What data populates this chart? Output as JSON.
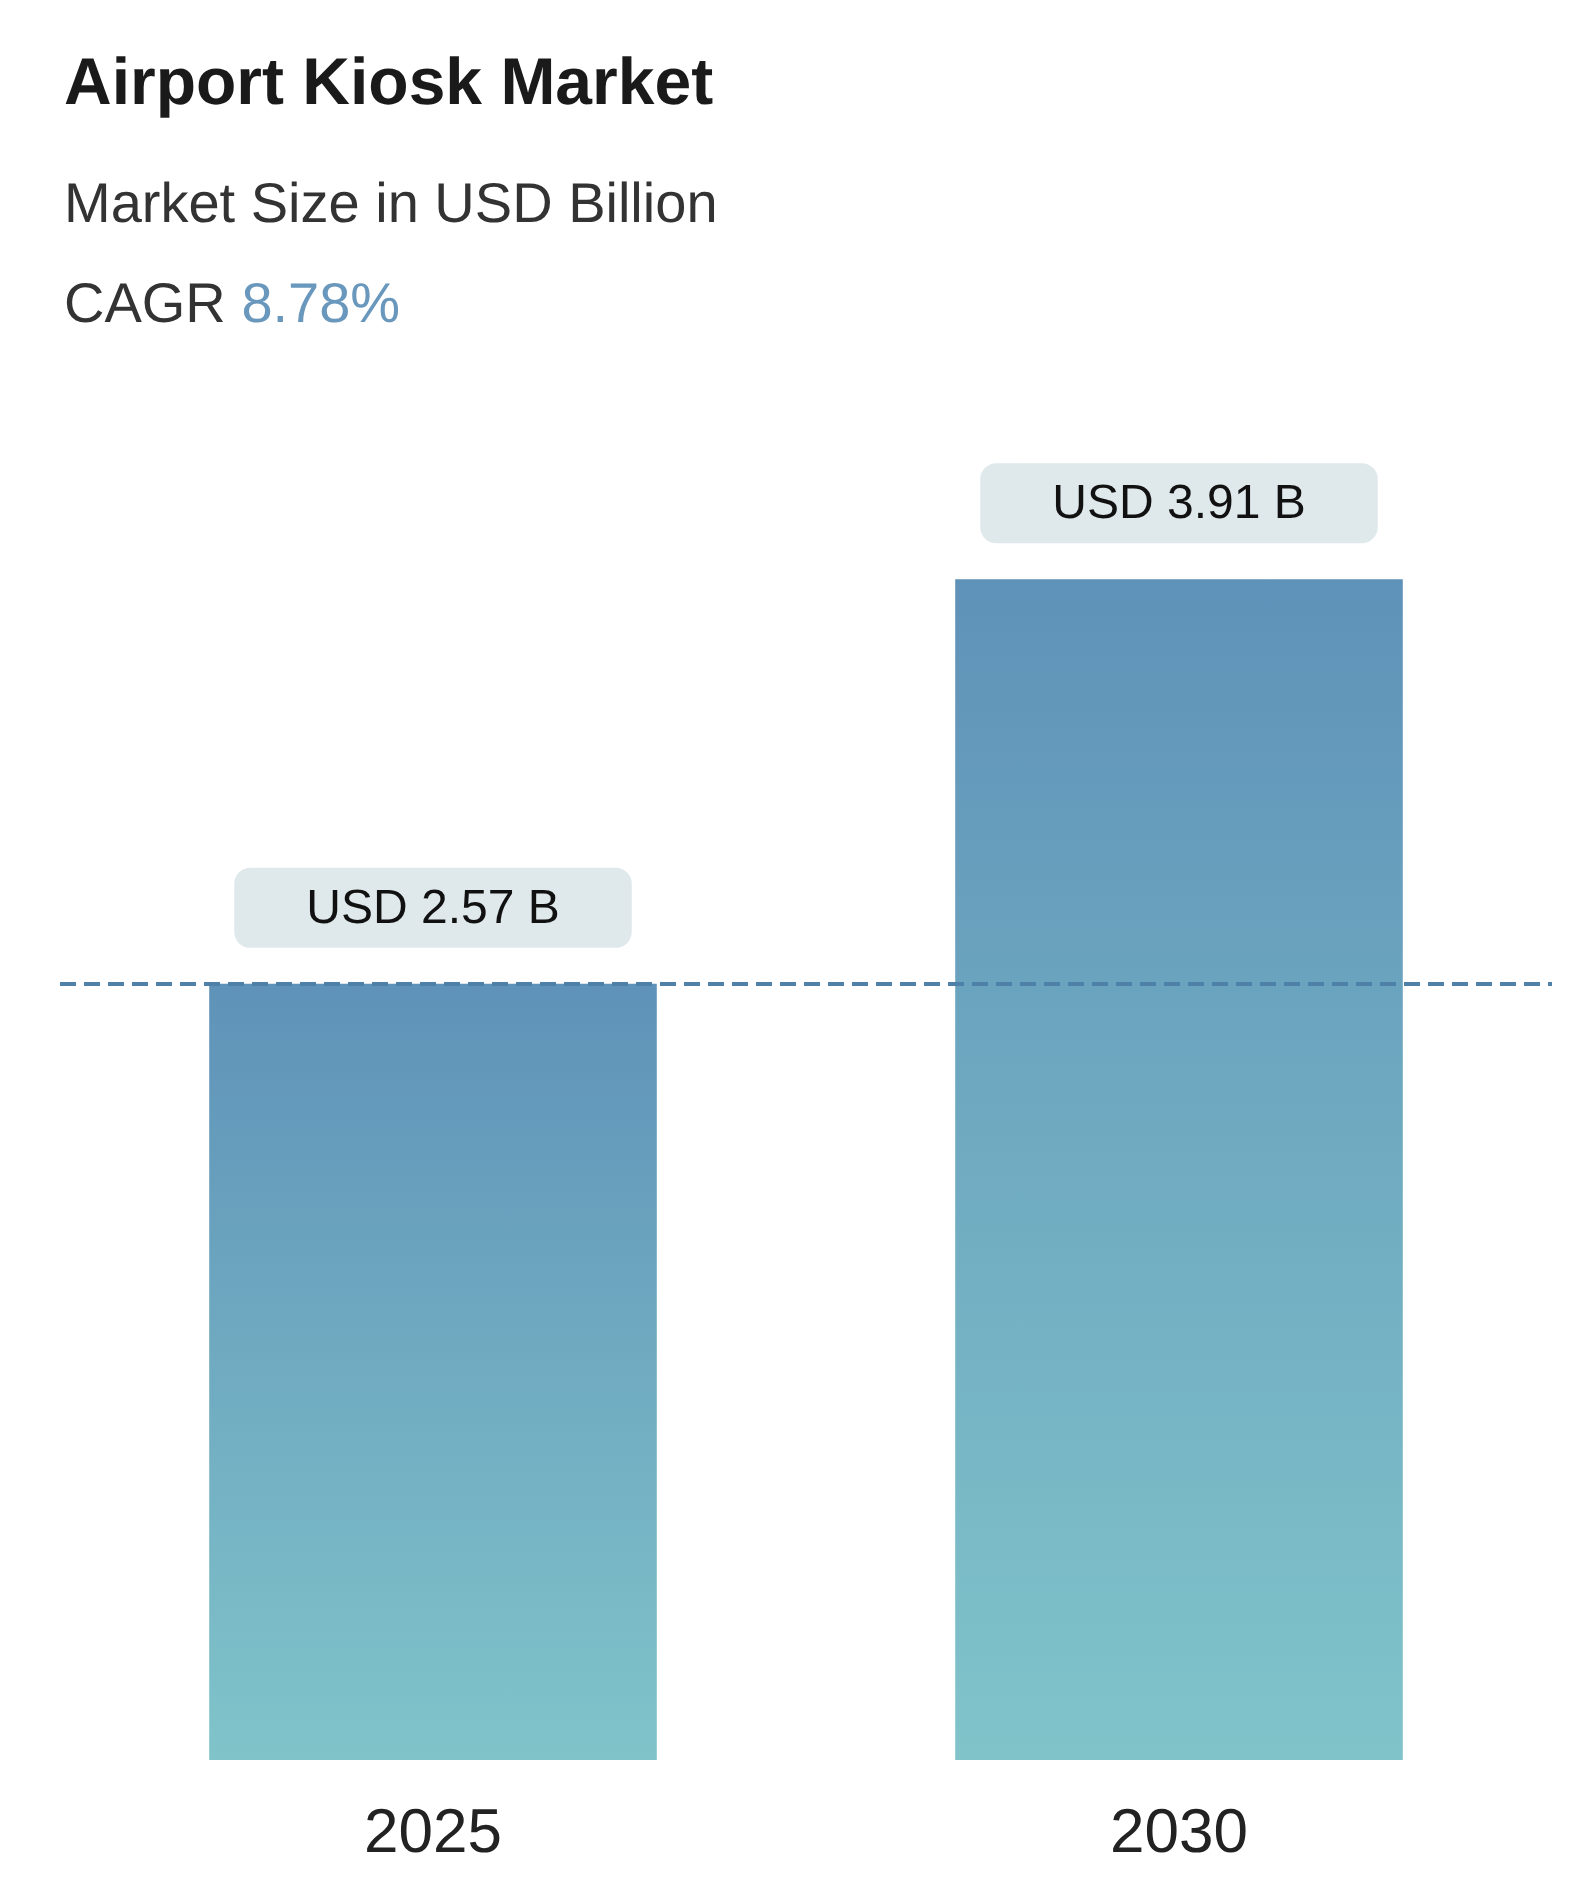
{
  "chart_data": {
    "type": "bar",
    "title": "Airport Kiosk Market",
    "subtitle": "Market Size in USD Billion",
    "annotations": [
      "CAGR 8.78%"
    ],
    "categories": [
      "2025",
      "2030"
    ],
    "values": [
      2.57,
      3.91
    ],
    "color": "#5f92b8",
    "value_labels": [
      "USD 2.57 B",
      "USD 3.91 B"
    ],
    "ref_lines": [
      {
        "axis": "y",
        "value": 2.57,
        "label": null,
        "color": "#4f80a8",
        "line_style": "dashed"
      }
    ],
    "grid": false
  }
}
